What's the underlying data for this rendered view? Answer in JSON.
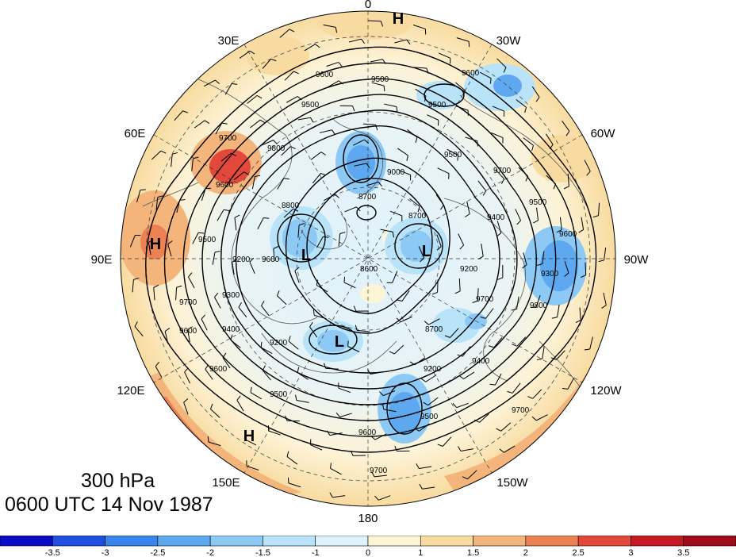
{
  "map": {
    "projection": "north polar stereographic",
    "longitude_labels": [
      {
        "text": "0",
        "lon": 0
      },
      {
        "text": "30E",
        "lon": 30
      },
      {
        "text": "60E",
        "lon": 60
      },
      {
        "text": "90E",
        "lon": 90
      },
      {
        "text": "120E",
        "lon": 120
      },
      {
        "text": "150E",
        "lon": 150
      },
      {
        "text": "180",
        "lon": 180
      },
      {
        "text": "150W",
        "lon": -150
      },
      {
        "text": "120W",
        "lon": -120
      },
      {
        "text": "90W",
        "lon": -90
      },
      {
        "text": "60W",
        "lon": -60
      },
      {
        "text": "30W",
        "lon": -30
      }
    ],
    "pressure_centers": [
      {
        "type": "H",
        "text": "H",
        "place": "top rim near 0"
      },
      {
        "type": "H",
        "text": "H",
        "place": "west near 90E"
      },
      {
        "type": "H",
        "text": "H",
        "place": "south-west near 150E"
      },
      {
        "type": "L",
        "text": "L",
        "place": "left of pole"
      },
      {
        "type": "L",
        "text": "L",
        "place": "right of pole"
      },
      {
        "type": "L",
        "text": "L",
        "place": "below pole"
      }
    ],
    "contour_labels": [
      "9500",
      "9600",
      "9500",
      "9600",
      "9500",
      "9700",
      "9500",
      "9600",
      "9000",
      "9800",
      "8700",
      "8700",
      "8800",
      "9700",
      "9200",
      "9300",
      "9400",
      "9600",
      "8600",
      "9500",
      "9300",
      "9400",
      "9200",
      "9600",
      "9200",
      "8700",
      "9500",
      "9700",
      "9400",
      "9600",
      "9700",
      "9800",
      "9200",
      "9500",
      "9600",
      "9700",
      "9500",
      "9600",
      "9700"
    ],
    "colors": {
      "land_outline": "#555555",
      "contours": "#000000",
      "background": "#ffffff"
    }
  },
  "captions": {
    "level": "300 hPa",
    "valid_time": "0600 UTC 14 Nov 1987"
  },
  "colorbar": {
    "tick_labels": [
      "-3.5",
      "-3",
      "-2.5",
      "-2",
      "-1.5",
      "-1",
      "0",
      "1",
      "1.5",
      "2",
      "2.5",
      "3",
      "3.5"
    ],
    "colors": [
      "#0b0bc6",
      "#1f4fe0",
      "#3a85ec",
      "#5ea8f0",
      "#8cc9f4",
      "#b8e3f8",
      "#dff2fb",
      "#fdf6d6",
      "#f8dba0",
      "#f3b57c",
      "#ec8154",
      "#e2493a",
      "#c51a22",
      "#a00c1c"
    ]
  }
}
